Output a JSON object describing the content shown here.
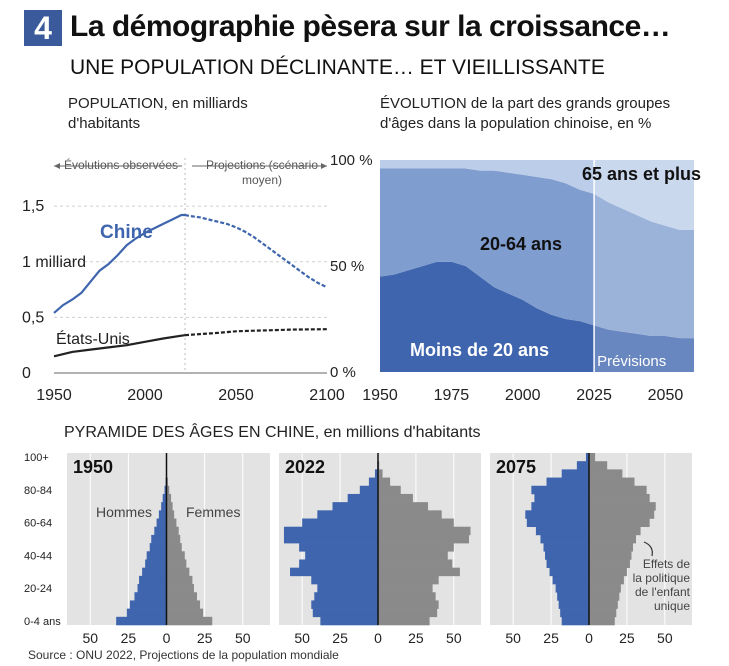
{
  "header": {
    "badge": "4",
    "title": "La démographie pèsera sur la croissance…",
    "subtitle": "UNE POPULATION DÉCLINANTE… ET VIEILLISSANTE"
  },
  "source": "Source : ONU 2022, Projections de la population mondiale",
  "colors": {
    "blue": "#3e65ad",
    "blue_mid": "#7f9dcf",
    "blue_light": "#bccde9",
    "gray": "#8a8a8a",
    "panel": "#e3e3e3",
    "black": "#222222"
  },
  "chart_data": [
    {
      "id": "population",
      "type": "line",
      "title": "POPULATION, en milliards d'habitants",
      "annotation_observed": "Évolutions observées",
      "annotation_projections": "Projections (scénario moyen)",
      "x_ticks": [
        "1950",
        "2000",
        "2050",
        "2100"
      ],
      "y_ticks": [
        "1,5",
        "1 milliard",
        "0,5",
        "0"
      ],
      "xlim": [
        1950,
        2100
      ],
      "ylim": [
        0,
        1.6
      ],
      "grid": true,
      "split_year": 2022,
      "series": [
        {
          "name": "Chine",
          "color": "#3e65ad",
          "x": [
            1950,
            1955,
            1960,
            1965,
            1970,
            1975,
            1980,
            1985,
            1990,
            1995,
            2000,
            2005,
            2010,
            2015,
            2020,
            2022,
            2025,
            2030,
            2035,
            2040,
            2045,
            2050,
            2055,
            2060,
            2065,
            2070,
            2075,
            2080,
            2085,
            2090,
            2095,
            2100
          ],
          "values": [
            0.54,
            0.61,
            0.66,
            0.72,
            0.82,
            0.92,
            0.98,
            1.06,
            1.15,
            1.21,
            1.26,
            1.3,
            1.34,
            1.38,
            1.42,
            1.42,
            1.41,
            1.4,
            1.38,
            1.36,
            1.34,
            1.31,
            1.27,
            1.22,
            1.16,
            1.1,
            1.04,
            0.98,
            0.92,
            0.86,
            0.81,
            0.77
          ]
        },
        {
          "name": "États-Unis",
          "color": "#222222",
          "x": [
            1950,
            1960,
            1970,
            1980,
            1990,
            2000,
            2010,
            2020,
            2022,
            2030,
            2040,
            2050,
            2060,
            2070,
            2080,
            2090,
            2100
          ],
          "values": [
            0.15,
            0.19,
            0.21,
            0.23,
            0.25,
            0.28,
            0.31,
            0.335,
            0.34,
            0.35,
            0.36,
            0.375,
            0.38,
            0.385,
            0.39,
            0.392,
            0.394
          ]
        }
      ]
    },
    {
      "id": "age_groups",
      "type": "area",
      "title": "ÉVOLUTION de la part des grands groupes d'âges dans la population chinoise, en %",
      "x_ticks": [
        "1950",
        "1975",
        "2000",
        "2025",
        "2050"
      ],
      "y_ticks": [
        "100 %",
        "50 %",
        "0 %"
      ],
      "xlim": [
        1950,
        2060
      ],
      "ylim": [
        0,
        100
      ],
      "forecast_label": "Prévisions",
      "forecast_start": 2025,
      "x": [
        1950,
        1955,
        1960,
        1965,
        1970,
        1975,
        1980,
        1985,
        1990,
        1995,
        2000,
        2005,
        2010,
        2015,
        2020,
        2025,
        2030,
        2035,
        2040,
        2045,
        2050,
        2055,
        2060
      ],
      "series": [
        {
          "name": "Moins de 20 ans",
          "color": "#3e65ad",
          "values": [
            45,
            46,
            48,
            50,
            52,
            52,
            50,
            45,
            40,
            37,
            34,
            30,
            27,
            25,
            24,
            22,
            20,
            19,
            18,
            17,
            17,
            16,
            16
          ]
        },
        {
          "name": "20-64 ans",
          "color": "#7f9dcf",
          "values": [
            51,
            50,
            48,
            46,
            44,
            44,
            46,
            50,
            55,
            57,
            59,
            62,
            64,
            64,
            62,
            62,
            60,
            58,
            56,
            54,
            52,
            51,
            51
          ]
        },
        {
          "name": "65 ans et plus",
          "color": "#bccde9",
          "values": [
            4,
            4,
            4,
            4,
            4,
            4,
            4,
            5,
            5,
            6,
            7,
            8,
            9,
            11,
            14,
            16,
            20,
            23,
            26,
            29,
            31,
            33,
            33
          ]
        }
      ]
    },
    {
      "id": "pyramids",
      "type": "bar",
      "title": "PYRAMIDE DES ÂGES EN CHINE, en millions d'habitants",
      "age_labels": [
        "100+",
        "80-84",
        "60-64",
        "40-44",
        "20-24",
        "0-4 ans"
      ],
      "age_groups": [
        "0-4",
        "5-9",
        "10-14",
        "15-19",
        "20-24",
        "25-29",
        "30-34",
        "35-39",
        "40-44",
        "45-49",
        "50-54",
        "55-59",
        "60-64",
        "65-69",
        "70-74",
        "75-79",
        "80-84",
        "85-89",
        "90-94",
        "95-99",
        "100+"
      ],
      "x_ticks": [
        "50",
        "25",
        "0",
        "25",
        "50"
      ],
      "xlim": [
        -60,
        60
      ],
      "legend": {
        "men": "Hommes",
        "women": "Femmes"
      },
      "pyramids": [
        {
          "year": "1950",
          "men": [
            33,
            26,
            24,
            21,
            19,
            18,
            16,
            14,
            13,
            11,
            10,
            8,
            6.5,
            5,
            3.5,
            2.5,
            1.3,
            0.6,
            0.2,
            0.1,
            0
          ],
          "women": [
            30,
            24,
            22,
            20,
            18,
            17,
            15,
            13,
            12,
            10,
            9,
            8,
            6.5,
            5,
            4,
            3,
            1.8,
            0.9,
            0.3,
            0.1,
            0
          ]
        },
        {
          "year": "2022",
          "men": [
            38,
            43,
            44,
            42,
            40,
            44,
            58,
            52,
            48,
            52,
            62,
            62,
            50,
            40,
            30,
            20,
            12,
            6,
            2,
            0.5,
            0.1
          ],
          "women": [
            34,
            39,
            40,
            38,
            36,
            40,
            54,
            49,
            46,
            50,
            60,
            61,
            50,
            42,
            33,
            23,
            15,
            8,
            3,
            0.8,
            0.2
          ]
        },
        {
          "year": "2075",
          "men": [
            18,
            19,
            20,
            21,
            22,
            24,
            26,
            28,
            29,
            30,
            32,
            35,
            41,
            42,
            38,
            36,
            38,
            28,
            18,
            8,
            2
          ],
          "women": [
            17,
            18,
            19,
            20,
            21,
            23,
            25,
            27,
            28,
            29,
            31,
            34,
            40,
            43,
            44,
            40,
            38,
            30,
            22,
            12,
            4
          ]
        }
      ],
      "annotation": "Effets de la politique de l'enfant unique"
    }
  ]
}
